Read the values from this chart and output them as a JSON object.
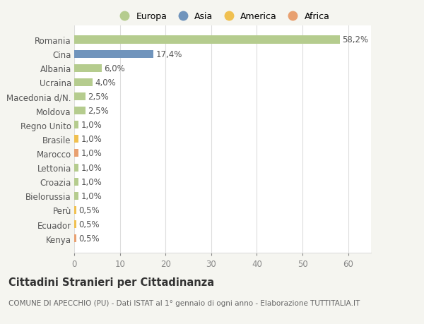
{
  "categories": [
    "Kenya",
    "Ecuador",
    "Perù",
    "Bielorussia",
    "Croazia",
    "Lettonia",
    "Marocco",
    "Brasile",
    "Regno Unito",
    "Moldova",
    "Macedonia d/N.",
    "Ucraina",
    "Albania",
    "Cina",
    "Romania"
  ],
  "values": [
    0.5,
    0.5,
    0.5,
    1.0,
    1.0,
    1.0,
    1.0,
    1.0,
    1.0,
    2.5,
    2.5,
    4.0,
    6.0,
    17.4,
    58.2
  ],
  "labels": [
    "0,5%",
    "0,5%",
    "0,5%",
    "1,0%",
    "1,0%",
    "1,0%",
    "1,0%",
    "1,0%",
    "1,0%",
    "2,5%",
    "2,5%",
    "4,0%",
    "6,0%",
    "17,4%",
    "58,2%"
  ],
  "continent": [
    "Africa",
    "America",
    "America",
    "Europa",
    "Europa",
    "Europa",
    "Africa",
    "America",
    "Europa",
    "Europa",
    "Europa",
    "Europa",
    "Europa",
    "Asia",
    "Europa"
  ],
  "colors": {
    "Europa": "#b5cc8e",
    "Asia": "#7094bc",
    "America": "#f0c050",
    "Africa": "#e8a070"
  },
  "legend_labels": [
    "Europa",
    "Asia",
    "America",
    "Africa"
  ],
  "legend_colors": [
    "#b5cc8e",
    "#7094bc",
    "#f0c050",
    "#e8a070"
  ],
  "xlim": [
    0,
    65
  ],
  "xticks": [
    0,
    10,
    20,
    30,
    40,
    50,
    60
  ],
  "title": "Cittadini Stranieri per Cittadinanza",
  "subtitle": "COMUNE DI APECCHIO (PU) - Dati ISTAT al 1° gennaio di ogni anno - Elaborazione TUTTITALIA.IT",
  "background_color": "#f5f5f0",
  "bar_area_color": "#ffffff",
  "grid_color": "#dddddd",
  "label_fontsize": 8.5,
  "tick_fontsize": 8.5,
  "title_fontsize": 10.5,
  "subtitle_fontsize": 7.5
}
